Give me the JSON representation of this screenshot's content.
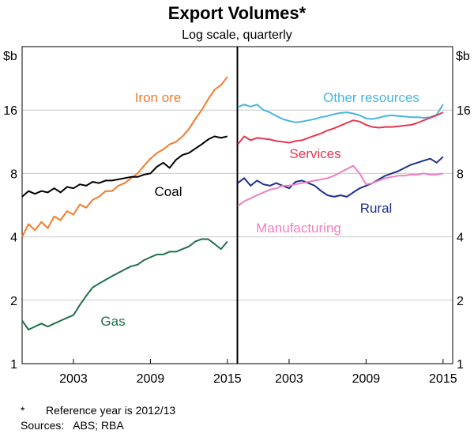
{
  "chart_data": [
    {
      "type": "line",
      "title": "Export Volumes*",
      "subtitle": "Log scale, quarterly",
      "ylabel": "$b",
      "yscale": "log",
      "ylim": [
        1,
        32
      ],
      "yticks": [
        1,
        2,
        4,
        8,
        16
      ],
      "xlim": [
        1999.0,
        2015.75
      ],
      "xticks": [
        2003,
        2009,
        2015
      ],
      "grid": true,
      "series": [
        {
          "name": "Iron ore",
          "color": "#f47b2a",
          "points": [
            [
              1999.0,
              4.0
            ],
            [
              1999.5,
              4.6
            ],
            [
              2000.0,
              4.3
            ],
            [
              2000.5,
              4.7
            ],
            [
              2001.0,
              4.4
            ],
            [
              2001.5,
              5.0
            ],
            [
              2002.0,
              4.8
            ],
            [
              2002.5,
              5.3
            ],
            [
              2003.0,
              5.1
            ],
            [
              2003.5,
              5.7
            ],
            [
              2004.0,
              5.5
            ],
            [
              2004.5,
              6.0
            ],
            [
              2005.0,
              6.2
            ],
            [
              2005.5,
              6.6
            ],
            [
              2006.0,
              6.6
            ],
            [
              2006.5,
              7.0
            ],
            [
              2007.0,
              7.2
            ],
            [
              2007.5,
              7.6
            ],
            [
              2008.0,
              8.0
            ],
            [
              2008.5,
              8.7
            ],
            [
              2009.0,
              9.4
            ],
            [
              2009.5,
              10.0
            ],
            [
              2010.0,
              10.4
            ],
            [
              2010.5,
              11.0
            ],
            [
              2011.0,
              11.3
            ],
            [
              2011.5,
              12.0
            ],
            [
              2012.0,
              13.0
            ],
            [
              2012.5,
              14.5
            ],
            [
              2013.0,
              16.0
            ],
            [
              2013.5,
              18.0
            ],
            [
              2014.0,
              20.0
            ],
            [
              2014.5,
              21.0
            ],
            [
              2015.0,
              23.0
            ]
          ]
        },
        {
          "name": "Coal",
          "color": "#000000",
          "points": [
            [
              1999.0,
              6.2
            ],
            [
              1999.5,
              6.6
            ],
            [
              2000.0,
              6.4
            ],
            [
              2000.5,
              6.6
            ],
            [
              2001.0,
              6.5
            ],
            [
              2001.5,
              6.8
            ],
            [
              2002.0,
              6.5
            ],
            [
              2002.5,
              6.9
            ],
            [
              2003.0,
              6.8
            ],
            [
              2003.5,
              7.1
            ],
            [
              2004.0,
              7.0
            ],
            [
              2004.5,
              7.3
            ],
            [
              2005.0,
              7.2
            ],
            [
              2005.5,
              7.4
            ],
            [
              2006.0,
              7.4
            ],
            [
              2006.5,
              7.5
            ],
            [
              2007.0,
              7.6
            ],
            [
              2007.5,
              7.7
            ],
            [
              2008.0,
              7.7
            ],
            [
              2008.5,
              7.9
            ],
            [
              2009.0,
              8.0
            ],
            [
              2009.5,
              8.6
            ],
            [
              2010.0,
              9.0
            ],
            [
              2010.5,
              8.5
            ],
            [
              2011.0,
              9.3
            ],
            [
              2011.5,
              9.8
            ],
            [
              2012.0,
              10.0
            ],
            [
              2012.5,
              10.5
            ],
            [
              2013.0,
              11.0
            ],
            [
              2013.5,
              11.6
            ],
            [
              2014.0,
              12.0
            ],
            [
              2014.5,
              11.8
            ],
            [
              2015.0,
              12.0
            ]
          ]
        },
        {
          "name": "Gas",
          "color": "#1f6f4a",
          "points": [
            [
              1999.0,
              1.6
            ],
            [
              1999.5,
              1.45
            ],
            [
              2000.0,
              1.5
            ],
            [
              2000.5,
              1.55
            ],
            [
              2001.0,
              1.5
            ],
            [
              2001.5,
              1.55
            ],
            [
              2002.0,
              1.6
            ],
            [
              2002.5,
              1.65
            ],
            [
              2003.0,
              1.7
            ],
            [
              2003.5,
              1.9
            ],
            [
              2004.0,
              2.1
            ],
            [
              2004.5,
              2.3
            ],
            [
              2005.0,
              2.4
            ],
            [
              2005.5,
              2.5
            ],
            [
              2006.0,
              2.6
            ],
            [
              2006.5,
              2.7
            ],
            [
              2007.0,
              2.8
            ],
            [
              2007.5,
              2.9
            ],
            [
              2008.0,
              2.95
            ],
            [
              2008.5,
              3.1
            ],
            [
              2009.0,
              3.2
            ],
            [
              2009.5,
              3.3
            ],
            [
              2010.0,
              3.3
            ],
            [
              2010.5,
              3.4
            ],
            [
              2011.0,
              3.4
            ],
            [
              2011.5,
              3.5
            ],
            [
              2012.0,
              3.6
            ],
            [
              2012.5,
              3.8
            ],
            [
              2013.0,
              3.9
            ],
            [
              2013.5,
              3.9
            ],
            [
              2014.0,
              3.7
            ],
            [
              2014.5,
              3.5
            ],
            [
              2015.0,
              3.8
            ]
          ]
        },
        {
          "name": "Other resources",
          "color": "#49b6de",
          "points": [
            [
              1999.0,
              16.5
            ],
            [
              1999.5,
              17.0
            ],
            [
              2000.0,
              16.6
            ],
            [
              2000.5,
              17.0
            ],
            [
              2001.0,
              16.0
            ],
            [
              2001.5,
              15.6
            ],
            [
              2002.0,
              15.0
            ],
            [
              2002.5,
              14.5
            ],
            [
              2003.0,
              14.2
            ],
            [
              2003.5,
              14.0
            ],
            [
              2004.0,
              14.1
            ],
            [
              2004.5,
              14.3
            ],
            [
              2005.0,
              14.5
            ],
            [
              2005.5,
              14.8
            ],
            [
              2006.0,
              15.0
            ],
            [
              2006.5,
              15.3
            ],
            [
              2007.0,
              15.5
            ],
            [
              2007.5,
              15.6
            ],
            [
              2008.0,
              15.4
            ],
            [
              2008.5,
              15.1
            ],
            [
              2009.0,
              14.6
            ],
            [
              2009.5,
              14.5
            ],
            [
              2010.0,
              14.7
            ],
            [
              2010.5,
              15.0
            ],
            [
              2011.0,
              15.1
            ],
            [
              2011.5,
              15.0
            ],
            [
              2012.0,
              14.9
            ],
            [
              2012.5,
              14.8
            ],
            [
              2013.0,
              14.8
            ],
            [
              2013.5,
              14.7
            ],
            [
              2014.0,
              14.8
            ],
            [
              2014.5,
              15.2
            ],
            [
              2015.0,
              17.0
            ]
          ]
        },
        {
          "name": "Services",
          "color": "#e8364f",
          "points": [
            [
              1999.0,
              11.0
            ],
            [
              1999.5,
              12.0
            ],
            [
              2000.0,
              11.5
            ],
            [
              2000.5,
              11.8
            ],
            [
              2001.0,
              11.7
            ],
            [
              2001.5,
              11.6
            ],
            [
              2002.0,
              11.4
            ],
            [
              2002.5,
              11.3
            ],
            [
              2003.0,
              11.2
            ],
            [
              2003.5,
              11.4
            ],
            [
              2004.0,
              11.5
            ],
            [
              2004.5,
              11.8
            ],
            [
              2005.0,
              12.1
            ],
            [
              2005.5,
              12.4
            ],
            [
              2006.0,
              12.8
            ],
            [
              2006.5,
              13.1
            ],
            [
              2007.0,
              13.5
            ],
            [
              2007.5,
              13.9
            ],
            [
              2008.0,
              14.3
            ],
            [
              2008.5,
              14.1
            ],
            [
              2009.0,
              13.6
            ],
            [
              2009.5,
              13.3
            ],
            [
              2010.0,
              13.2
            ],
            [
              2010.5,
              13.3
            ],
            [
              2011.0,
              13.3
            ],
            [
              2011.5,
              13.4
            ],
            [
              2012.0,
              13.5
            ],
            [
              2012.5,
              13.6
            ],
            [
              2013.0,
              13.9
            ],
            [
              2013.5,
              14.3
            ],
            [
              2014.0,
              14.7
            ],
            [
              2014.5,
              15.1
            ],
            [
              2015.0,
              15.6
            ]
          ]
        },
        {
          "name": "Rural",
          "color": "#1e2f8e",
          "points": [
            [
              1999.0,
              7.2
            ],
            [
              1999.5,
              7.6
            ],
            [
              2000.0,
              7.0
            ],
            [
              2000.5,
              7.4
            ],
            [
              2001.0,
              7.1
            ],
            [
              2001.5,
              7.0
            ],
            [
              2002.0,
              7.2
            ],
            [
              2002.5,
              7.0
            ],
            [
              2003.0,
              6.8
            ],
            [
              2003.5,
              7.3
            ],
            [
              2004.0,
              7.4
            ],
            [
              2004.5,
              7.2
            ],
            [
              2005.0,
              7.0
            ],
            [
              2005.5,
              6.6
            ],
            [
              2006.0,
              6.3
            ],
            [
              2006.5,
              6.2
            ],
            [
              2007.0,
              6.3
            ],
            [
              2007.5,
              6.2
            ],
            [
              2008.0,
              6.5
            ],
            [
              2008.5,
              6.8
            ],
            [
              2009.0,
              7.0
            ],
            [
              2009.5,
              7.2
            ],
            [
              2010.0,
              7.5
            ],
            [
              2010.5,
              7.8
            ],
            [
              2011.0,
              8.0
            ],
            [
              2011.5,
              8.2
            ],
            [
              2012.0,
              8.5
            ],
            [
              2012.5,
              8.8
            ],
            [
              2013.0,
              9.0
            ],
            [
              2013.5,
              9.2
            ],
            [
              2014.0,
              9.4
            ],
            [
              2014.5,
              9.0
            ],
            [
              2015.0,
              9.6
            ]
          ]
        },
        {
          "name": "Manufacturing",
          "color": "#f07fbf",
          "points": [
            [
              1999.0,
              5.6
            ],
            [
              1999.5,
              5.9
            ],
            [
              2000.0,
              6.1
            ],
            [
              2000.5,
              6.3
            ],
            [
              2001.0,
              6.5
            ],
            [
              2001.5,
              6.7
            ],
            [
              2002.0,
              6.8
            ],
            [
              2002.5,
              7.0
            ],
            [
              2003.0,
              7.0
            ],
            [
              2003.5,
              7.1
            ],
            [
              2004.0,
              7.2
            ],
            [
              2004.5,
              7.3
            ],
            [
              2005.0,
              7.4
            ],
            [
              2005.5,
              7.5
            ],
            [
              2006.0,
              7.6
            ],
            [
              2006.5,
              7.8
            ],
            [
              2007.0,
              8.1
            ],
            [
              2007.5,
              8.4
            ],
            [
              2008.0,
              8.7
            ],
            [
              2008.5,
              8.0
            ],
            [
              2009.0,
              7.1
            ],
            [
              2009.5,
              7.2
            ],
            [
              2010.0,
              7.4
            ],
            [
              2010.5,
              7.6
            ],
            [
              2011.0,
              7.7
            ],
            [
              2011.5,
              7.8
            ],
            [
              2012.0,
              7.8
            ],
            [
              2012.5,
              7.9
            ],
            [
              2013.0,
              7.9
            ],
            [
              2013.5,
              8.0
            ],
            [
              2014.0,
              7.9
            ],
            [
              2014.5,
              7.9
            ],
            [
              2015.0,
              8.0
            ]
          ]
        }
      ]
    }
  ],
  "footnote_marker": "*",
  "footnote_text": "Reference year is 2012/13",
  "sources": "Sources:   ABS; RBA"
}
